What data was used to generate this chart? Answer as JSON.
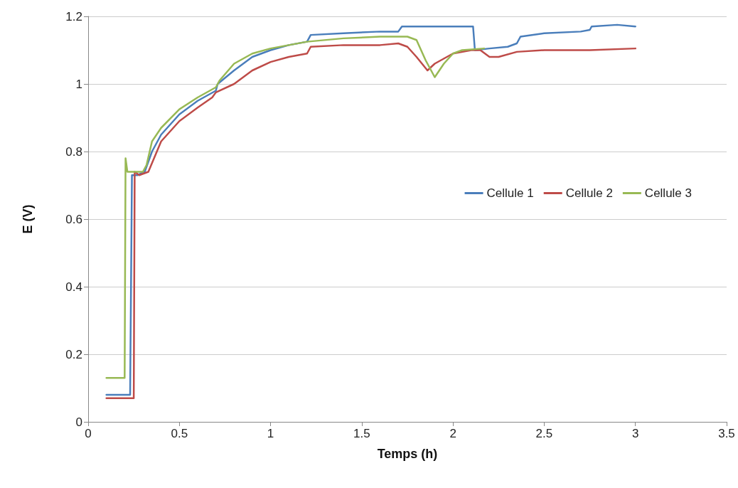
{
  "chart_data": {
    "type": "line",
    "xlabel": "Temps (h)",
    "ylabel": "E (V)",
    "xlim": [
      0,
      3.5
    ],
    "xticks": [
      0,
      0.5,
      1,
      1.5,
      2,
      2.5,
      3,
      3.5
    ],
    "ylim": [
      0,
      1.2
    ],
    "yticks": [
      0,
      0.2,
      0.4,
      0.6,
      0.8,
      1,
      1.2
    ],
    "grid": "y",
    "legend": "right",
    "marker": "none",
    "line_style": "solid",
    "series": [
      {
        "name": "Cellule 1",
        "color": "#4a7ebb",
        "x": [
          0.1,
          0.15,
          0.2,
          0.23,
          0.24,
          0.27,
          0.31,
          0.35,
          0.4,
          0.5,
          0.6,
          0.7,
          0.71,
          0.8,
          0.9,
          1.0,
          1.1,
          1.2,
          1.22,
          1.4,
          1.6,
          1.7,
          1.72,
          1.9,
          2.0,
          2.11,
          2.12,
          2.2,
          2.3,
          2.35,
          2.37,
          2.5,
          2.7,
          2.75,
          2.76,
          2.9,
          3.0
        ],
        "values": [
          0.08,
          0.08,
          0.08,
          0.08,
          0.73,
          0.73,
          0.74,
          0.8,
          0.85,
          0.91,
          0.95,
          0.98,
          1.0,
          1.04,
          1.08,
          1.1,
          1.115,
          1.125,
          1.145,
          1.15,
          1.155,
          1.155,
          1.17,
          1.17,
          1.17,
          1.17,
          1.1,
          1.105,
          1.11,
          1.12,
          1.14,
          1.15,
          1.155,
          1.16,
          1.17,
          1.175,
          1.17
        ]
      },
      {
        "name": "Cellule 2",
        "color": "#be4b48",
        "x": [
          0.1,
          0.15,
          0.2,
          0.25,
          0.255,
          0.28,
          0.33,
          0.4,
          0.5,
          0.6,
          0.68,
          0.7,
          0.8,
          0.9,
          1.0,
          1.1,
          1.2,
          1.22,
          1.4,
          1.6,
          1.7,
          1.75,
          1.8,
          1.86,
          1.9,
          2.0,
          2.1,
          2.15,
          2.2,
          2.25,
          2.35,
          2.5,
          2.75,
          3.0
        ],
        "values": [
          0.07,
          0.07,
          0.07,
          0.07,
          0.74,
          0.73,
          0.74,
          0.83,
          0.89,
          0.93,
          0.96,
          0.975,
          1.0,
          1.04,
          1.065,
          1.08,
          1.09,
          1.11,
          1.115,
          1.115,
          1.12,
          1.11,
          1.08,
          1.04,
          1.06,
          1.09,
          1.1,
          1.1,
          1.08,
          1.08,
          1.095,
          1.1,
          1.1,
          1.105
        ]
      },
      {
        "name": "Cellule 3",
        "color": "#98b954",
        "x": [
          0.1,
          0.15,
          0.2,
          0.205,
          0.215,
          0.25,
          0.3,
          0.32,
          0.35,
          0.4,
          0.5,
          0.6,
          0.7,
          0.72,
          0.8,
          0.9,
          1.0,
          1.2,
          1.4,
          1.6,
          1.75,
          1.8,
          1.85,
          1.9,
          1.95,
          2.0,
          2.05,
          2.17
        ],
        "values": [
          0.13,
          0.13,
          0.13,
          0.78,
          0.74,
          0.74,
          0.74,
          0.76,
          0.83,
          0.87,
          0.925,
          0.96,
          0.99,
          1.01,
          1.06,
          1.09,
          1.105,
          1.125,
          1.135,
          1.14,
          1.14,
          1.13,
          1.07,
          1.02,
          1.06,
          1.09,
          1.1,
          1.105
        ]
      }
    ]
  }
}
